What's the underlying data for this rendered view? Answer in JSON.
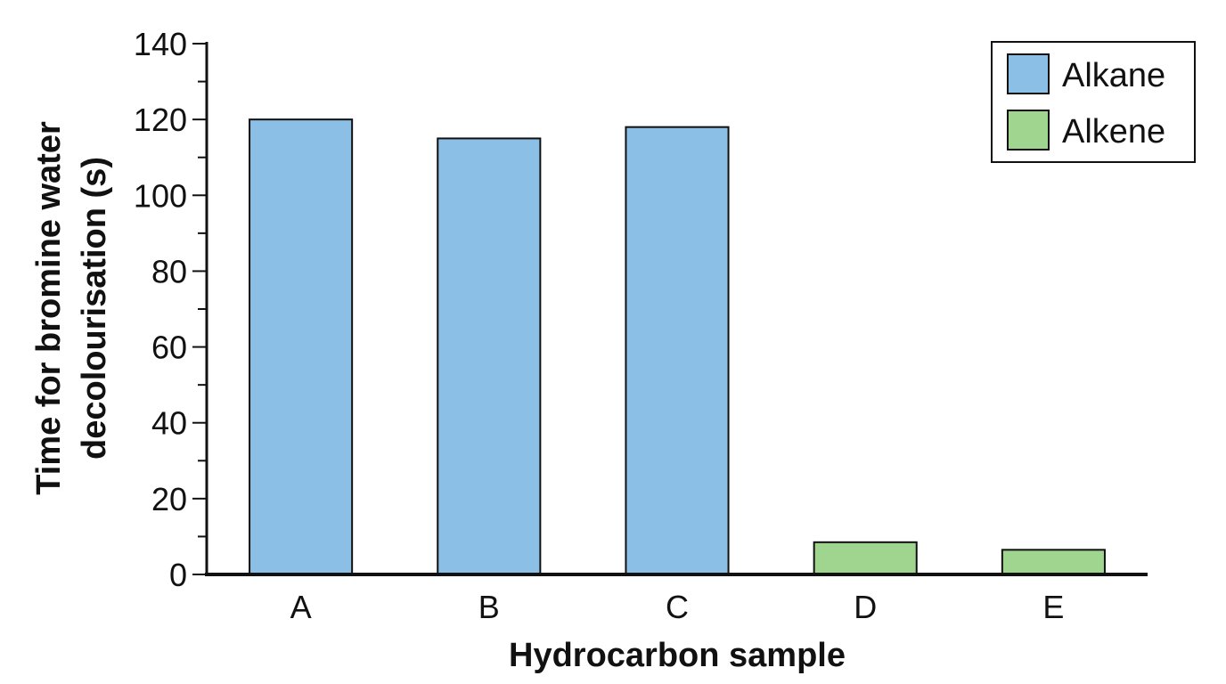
{
  "chart_data": {
    "type": "bar",
    "categories": [
      "A",
      "B",
      "C",
      "D",
      "E"
    ],
    "values": [
      120,
      115,
      118,
      8.5,
      6.5
    ],
    "category_series": [
      "Alkane",
      "Alkane",
      "Alkane",
      "Alkene",
      "Alkene"
    ],
    "xlabel": "Hydrocarbon sample",
    "ylabel_lines": [
      "Time for bromine water",
      "decolourisation (s)"
    ],
    "ylim": [
      0,
      140
    ],
    "ytick_major": [
      0,
      20,
      40,
      60,
      80,
      100,
      120,
      140
    ],
    "ytick_minor_step": 10,
    "grid": false,
    "legend_position": "top-right",
    "series": [
      {
        "name": "Alkane",
        "color": "#8bbfe6"
      },
      {
        "name": "Alkene",
        "color": "#a0d58f"
      }
    ]
  }
}
